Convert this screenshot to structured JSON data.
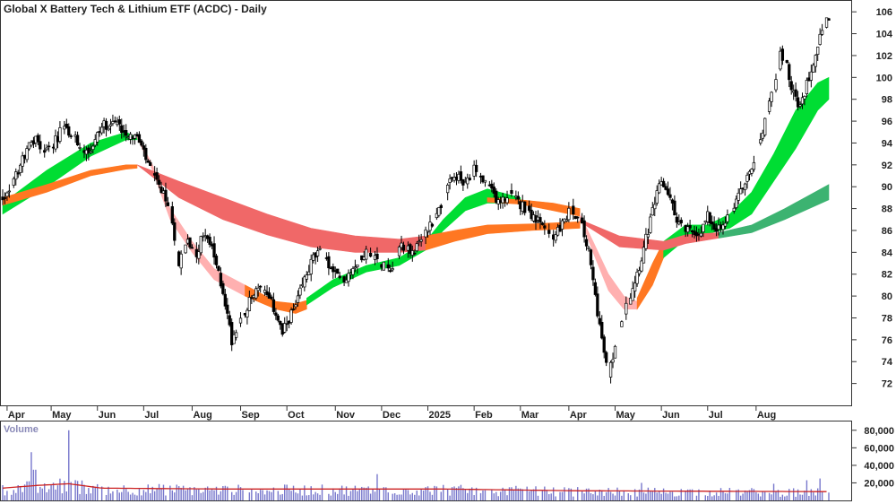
{
  "chart_data": {
    "type": "candlestick",
    "title": "Global X Battery Tech & Lithium ETF (ACDC) - Daily",
    "price_axis": {
      "ylim": [
        70,
        107
      ],
      "ticks": [
        72,
        74,
        76,
        78,
        80,
        82,
        84,
        86,
        88,
        90,
        92,
        94,
        96,
        98,
        100,
        102,
        104,
        106
      ]
    },
    "x_labels": [
      "Apr",
      "May",
      "Jun",
      "Jul",
      "Aug",
      "Sep",
      "Oct",
      "Nov",
      "Dec",
      "2025",
      "Feb",
      "Mar",
      "Apr",
      "May",
      "Jun",
      "Jul",
      "Aug"
    ],
    "price_close": [
      [
        0,
        89.0
      ],
      [
        5,
        90.5
      ],
      [
        10,
        93.0
      ],
      [
        15,
        94.5
      ],
      [
        19,
        93.0
      ],
      [
        23,
        94.0
      ],
      [
        28,
        95.5
      ],
      [
        32,
        94.5
      ],
      [
        36,
        93.5
      ],
      [
        40,
        93.5
      ],
      [
        45,
        95.5
      ],
      [
        50,
        96.0
      ],
      [
        56,
        95.0
      ],
      [
        61,
        94.5
      ],
      [
        66,
        92.0
      ],
      [
        72,
        89.5
      ],
      [
        76,
        88.0
      ],
      [
        80,
        83.0
      ],
      [
        84,
        85.0
      ],
      [
        88,
        84.0
      ],
      [
        92,
        86.0
      ],
      [
        96,
        83.5
      ],
      [
        100,
        80.5
      ],
      [
        104,
        76.0
      ],
      [
        108,
        78.0
      ],
      [
        112,
        79.5
      ],
      [
        116,
        81.0
      ],
      [
        120,
        80.0
      ],
      [
        124,
        78.5
      ],
      [
        127,
        76.5
      ],
      [
        130,
        78.0
      ],
      [
        133,
        79.0
      ],
      [
        137,
        81.5
      ],
      [
        141,
        83.5
      ],
      [
        145,
        84.0
      ],
      [
        150,
        82.0
      ],
      [
        155,
        81.5
      ],
      [
        160,
        83.0
      ],
      [
        164,
        84.0
      ],
      [
        168,
        83.5
      ],
      [
        172,
        83.0
      ],
      [
        176,
        82.5
      ],
      [
        181,
        84.5
      ],
      [
        186,
        84.0
      ],
      [
        190,
        85.0
      ],
      [
        194,
        86.5
      ],
      [
        198,
        88.0
      ],
      [
        202,
        90.0
      ],
      [
        206,
        91.0
      ],
      [
        210,
        90.0
      ],
      [
        214,
        91.5
      ],
      [
        218,
        90.5
      ],
      [
        222,
        89.5
      ],
      [
        226,
        88.5
      ],
      [
        230,
        89.5
      ],
      [
        234,
        88.5
      ],
      [
        238,
        88.0
      ],
      [
        242,
        87.0
      ],
      [
        246,
        86.0
      ],
      [
        250,
        85.5
      ],
      [
        254,
        86.5
      ],
      [
        258,
        88.0
      ],
      [
        262,
        87.0
      ],
      [
        266,
        84.0
      ],
      [
        269,
        80.0
      ],
      [
        272,
        76.0
      ],
      [
        275,
        72.5
      ],
      [
        278,
        75.5
      ],
      [
        281,
        78.0
      ],
      [
        284,
        79.5
      ],
      [
        287,
        81.5
      ],
      [
        290,
        83.5
      ],
      [
        293,
        86.0
      ],
      [
        296,
        88.5
      ],
      [
        299,
        90.5
      ],
      [
        302,
        89.5
      ],
      [
        305,
        87.5
      ],
      [
        308,
        86.5
      ],
      [
        311,
        86.0
      ],
      [
        314,
        85.5
      ],
      [
        317,
        86.0
      ],
      [
        320,
        87.5
      ],
      [
        323,
        86.5
      ],
      [
        326,
        86.0
      ],
      [
        330,
        87.5
      ],
      [
        334,
        89.0
      ],
      [
        338,
        91.0
      ],
      [
        342,
        93.0
      ],
      [
        346,
        96.0
      ],
      [
        350,
        99.0
      ],
      [
        353,
        102.0
      ],
      [
        356,
        101.0
      ],
      [
        359,
        98.5
      ],
      [
        362,
        97.0
      ],
      [
        365,
        99.5
      ],
      [
        368,
        101.5
      ],
      [
        371,
        104.0
      ],
      [
        374,
        105.0
      ]
    ],
    "series": [
      {
        "color": "#00dd33",
        "upper": [
          [
            0,
            88.5
          ],
          [
            20,
            91.5
          ],
          [
            40,
            94.0
          ],
          [
            56,
            95.0
          ],
          [
            61,
            94.5
          ]
        ],
        "lower": [
          [
            0,
            87.5
          ],
          [
            20,
            90.0
          ],
          [
            40,
            92.8
          ],
          [
            56,
            94.3
          ],
          [
            61,
            94.3
          ]
        ]
      },
      {
        "color": "#ff7722",
        "upper": [
          [
            0,
            89.0
          ],
          [
            20,
            90.2
          ],
          [
            40,
            91.5
          ],
          [
            56,
            92.0
          ],
          [
            61,
            92.0
          ]
        ],
        "lower": [
          [
            0,
            88.3
          ],
          [
            20,
            89.5
          ],
          [
            40,
            91.0
          ],
          [
            56,
            91.6
          ],
          [
            61,
            91.7
          ]
        ]
      },
      {
        "color": "#ffb0b0",
        "upper": [
          [
            61,
            94.7
          ],
          [
            68,
            92.0
          ],
          [
            76,
            88.0
          ],
          [
            86,
            85.0
          ],
          [
            96,
            82.5
          ],
          [
            110,
            81.0
          ],
          [
            124,
            79.5
          ],
          [
            133,
            79.0
          ]
        ],
        "lower": [
          [
            61,
            94.5
          ],
          [
            68,
            91.5
          ],
          [
            76,
            87.0
          ],
          [
            86,
            84.0
          ],
          [
            96,
            81.5
          ],
          [
            110,
            80.0
          ],
          [
            124,
            78.8
          ],
          [
            133,
            78.7
          ]
        ]
      },
      {
        "color": "#ff7722",
        "upper": [
          [
            110,
            81.0
          ],
          [
            124,
            79.5
          ],
          [
            133,
            79.3
          ],
          [
            138,
            79.6
          ]
        ],
        "lower": [
          [
            110,
            80.0
          ],
          [
            124,
            78.8
          ],
          [
            133,
            78.4
          ],
          [
            138,
            78.8
          ]
        ]
      },
      {
        "color": "#00dd33",
        "upper": [
          [
            138,
            79.8
          ],
          [
            150,
            81.5
          ],
          [
            165,
            82.8
          ],
          [
            180,
            83.5
          ],
          [
            192,
            85.0
          ],
          [
            200,
            87.0
          ],
          [
            210,
            89.0
          ],
          [
            220,
            89.8
          ],
          [
            235,
            89.0
          ]
        ],
        "lower": [
          [
            138,
            79.2
          ],
          [
            150,
            80.8
          ],
          [
            165,
            82.2
          ],
          [
            180,
            82.8
          ],
          [
            192,
            84.2
          ],
          [
            200,
            86.0
          ],
          [
            210,
            87.8
          ],
          [
            220,
            88.5
          ],
          [
            235,
            88.5
          ]
        ]
      },
      {
        "color": "#f06868",
        "upper": [
          [
            61,
            92.0
          ],
          [
            80,
            90.5
          ],
          [
            100,
            89.0
          ],
          [
            120,
            87.5
          ],
          [
            140,
            86.2
          ],
          [
            160,
            85.5
          ],
          [
            180,
            85.2
          ],
          [
            192,
            85.5
          ]
        ],
        "lower": [
          [
            61,
            92.0
          ],
          [
            80,
            89.0
          ],
          [
            100,
            87.0
          ],
          [
            120,
            85.6
          ],
          [
            140,
            84.5
          ],
          [
            160,
            84.0
          ],
          [
            180,
            84.0
          ],
          [
            192,
            84.2
          ]
        ]
      },
      {
        "color": "#ff7722",
        "upper": [
          [
            192,
            85.5
          ],
          [
            205,
            86.0
          ],
          [
            220,
            86.5
          ],
          [
            240,
            86.6
          ],
          [
            262,
            86.8
          ]
        ],
        "lower": [
          [
            192,
            84.2
          ],
          [
            205,
            85.0
          ],
          [
            220,
            85.7
          ],
          [
            240,
            86.0
          ],
          [
            262,
            86.2
          ]
        ]
      },
      {
        "color": "#ff7722",
        "upper": [
          [
            220,
            89.0
          ],
          [
            235,
            88.8
          ],
          [
            250,
            88.5
          ],
          [
            262,
            88.0
          ]
        ],
        "lower": [
          [
            220,
            88.6
          ],
          [
            235,
            88.4
          ],
          [
            250,
            87.8
          ],
          [
            262,
            87.3
          ]
        ]
      },
      {
        "color": "#ffb0b0",
        "upper": [
          [
            262,
            87.5
          ],
          [
            268,
            85.0
          ],
          [
            275,
            82.0
          ],
          [
            282,
            80.0
          ],
          [
            288,
            79.5
          ]
        ],
        "lower": [
          [
            262,
            87.2
          ],
          [
            268,
            84.0
          ],
          [
            275,
            80.5
          ],
          [
            282,
            78.8
          ],
          [
            288,
            78.8
          ]
        ]
      },
      {
        "color": "#ff7722",
        "upper": [
          [
            288,
            79.8
          ],
          [
            295,
            83.0
          ],
          [
            300,
            85.0
          ]
        ],
        "lower": [
          [
            288,
            78.8
          ],
          [
            295,
            81.0
          ],
          [
            300,
            83.5
          ]
        ]
      },
      {
        "color": "#00dd33",
        "upper": [
          [
            300,
            85.0
          ],
          [
            310,
            86.5
          ],
          [
            320,
            86.5
          ],
          [
            330,
            87.5
          ],
          [
            340,
            89.5
          ],
          [
            350,
            93.0
          ],
          [
            360,
            97.0
          ],
          [
            370,
            99.5
          ],
          [
            375,
            100.0
          ]
        ],
        "lower": [
          [
            300,
            83.5
          ],
          [
            310,
            85.2
          ],
          [
            320,
            85.7
          ],
          [
            330,
            86.2
          ],
          [
            340,
            87.5
          ],
          [
            350,
            90.5
          ],
          [
            360,
            93.5
          ],
          [
            370,
            97.0
          ],
          [
            375,
            98.0
          ]
        ]
      },
      {
        "color": "#f06868",
        "upper": [
          [
            262,
            87.0
          ],
          [
            280,
            85.5
          ],
          [
            300,
            85.0
          ],
          [
            310,
            85.6
          ],
          [
            325,
            85.8
          ]
        ],
        "lower": [
          [
            262,
            86.8
          ],
          [
            280,
            84.5
          ],
          [
            300,
            84.2
          ],
          [
            310,
            84.8
          ],
          [
            325,
            85.3
          ]
        ]
      },
      {
        "color": "#3cb371",
        "upper": [
          [
            325,
            85.8
          ],
          [
            340,
            86.5
          ],
          [
            355,
            88.0
          ],
          [
            375,
            90.2
          ]
        ],
        "lower": [
          [
            325,
            85.3
          ],
          [
            340,
            85.8
          ],
          [
            355,
            87.0
          ],
          [
            375,
            88.8
          ]
        ]
      }
    ],
    "volume": {
      "label": "Volume",
      "ylim": [
        0,
        90000
      ],
      "ticks": [
        "20,000",
        "40,000",
        "60,000",
        "80,000"
      ],
      "tick_values": [
        20000,
        40000,
        60000,
        80000
      ],
      "spikes": [
        [
          13,
          55000
        ],
        [
          14,
          35000
        ],
        [
          15,
          35000
        ],
        [
          30,
          80000
        ],
        [
          170,
          30000
        ],
        [
          230,
          15000
        ],
        [
          255,
          15000
        ],
        [
          290,
          20000
        ],
        [
          350,
          19000
        ],
        [
          365,
          23000
        ],
        [
          371,
          25000
        ]
      ],
      "average": [
        [
          0,
          14000
        ],
        [
          15,
          17000
        ],
        [
          30,
          19000
        ],
        [
          45,
          14000
        ],
        [
          100,
          13000
        ],
        [
          200,
          13000
        ],
        [
          260,
          11000
        ],
        [
          375,
          10000
        ]
      ]
    }
  }
}
